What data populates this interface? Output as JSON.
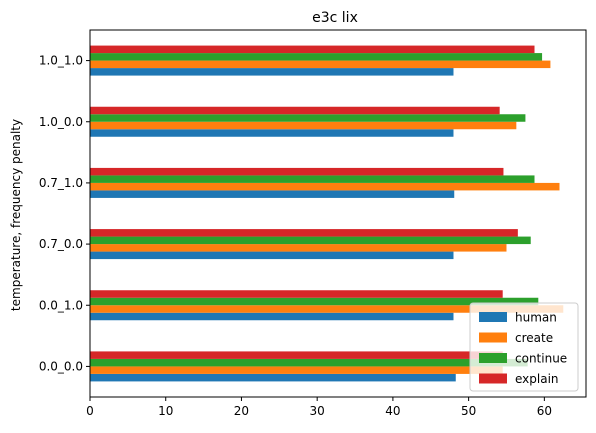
{
  "chart_data": {
    "type": "bar",
    "orientation": "horizontal",
    "title": "e3c lix",
    "xlabel": "",
    "ylabel": "temperature, frequency penalty",
    "categories": [
      "0.0_0.0",
      "0.0_1.0",
      "0.7_0.0",
      "0.7_1.0",
      "1.0_0.0",
      "1.0_1.0"
    ],
    "xlim": [
      0,
      65.5
    ],
    "xticks": [
      0,
      10,
      20,
      30,
      40,
      50,
      60
    ],
    "grid": false,
    "legend_position": "bottom-right",
    "series": [
      {
        "name": "human",
        "color": "#1f77b4",
        "values": [
          48.3,
          48.0,
          48.0,
          48.1,
          48.0,
          48.0
        ]
      },
      {
        "name": "create",
        "color": "#ff7f0e",
        "values": [
          54.5,
          62.5,
          55.0,
          62.0,
          56.3,
          60.8
        ]
      },
      {
        "name": "continue",
        "color": "#2ca02c",
        "values": [
          57.8,
          59.2,
          58.2,
          58.7,
          57.5,
          59.7
        ]
      },
      {
        "name": "explain",
        "color": "#d62728",
        "values": [
          54.5,
          54.5,
          56.5,
          54.6,
          54.1,
          58.7
        ]
      }
    ]
  }
}
